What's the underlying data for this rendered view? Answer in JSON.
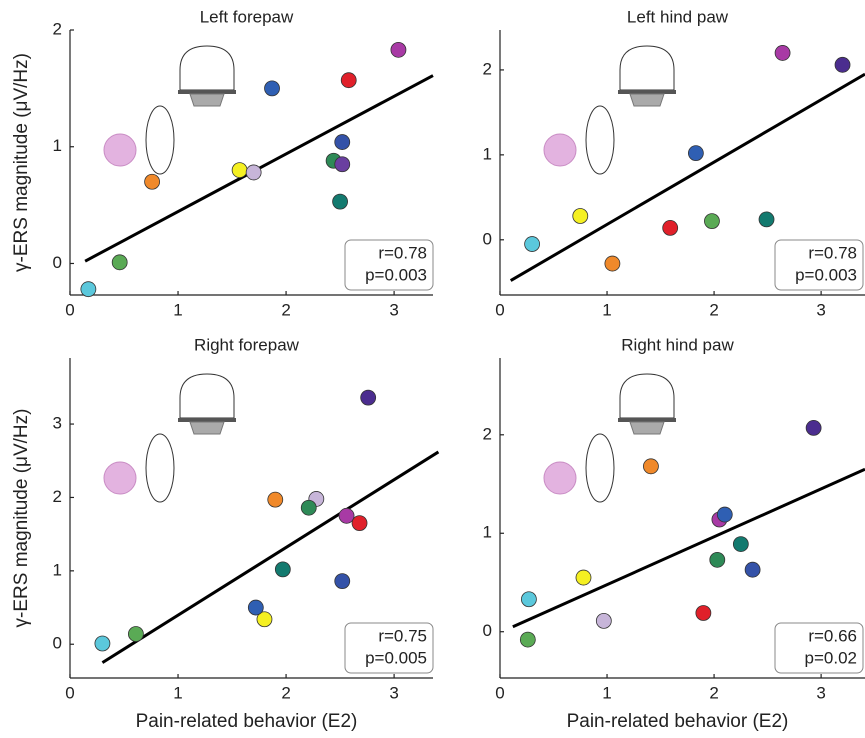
{
  "chart_data": [
    {
      "type": "scatter",
      "title": "Left forepaw",
      "ylabel": "γ-ERS magnitude (μV/Hz)",
      "xlim": [
        0,
        3.36
      ],
      "ylim": [
        -0.27,
        2
      ],
      "xticks": [
        0,
        1,
        2,
        3
      ],
      "yticks": [
        0,
        1,
        2
      ],
      "points": {
        "x": [
          0.17,
          0.46,
          0.76,
          1.57,
          1.7,
          1.87,
          2.44,
          2.52,
          2.52,
          2.5,
          2.58,
          3.04
        ],
        "y": [
          -0.22,
          0.01,
          0.7,
          0.8,
          0.78,
          1.5,
          0.88,
          1.04,
          0.85,
          0.53,
          1.57,
          1.83
        ],
        "colors": [
          "#5bc8dc",
          "#5aaa55",
          "#f0892a",
          "#f5f022",
          "#c7b5d9",
          "#2f5fb3",
          "#2e8a57",
          "#3452a8",
          "#6a3fa0",
          "#137a6f",
          "#e0202a",
          "#a83aa5"
        ]
      },
      "fit": {
        "x": [
          0.14,
          3.36
        ],
        "y": [
          0.02,
          1.61
        ]
      },
      "annotation": [
        "r=0.78",
        "p=0.003"
      ]
    },
    {
      "type": "scatter",
      "title": "Left hind paw",
      "xlim": [
        0,
        3.41
      ],
      "ylim": [
        -0.65,
        2.47
      ],
      "xticks": [
        0,
        1,
        2,
        3
      ],
      "yticks": [
        0,
        1,
        2
      ],
      "points": {
        "x": [
          0.3,
          0.75,
          1.05,
          1.59,
          1.83,
          1.98,
          2.49,
          2.64,
          3.2
        ],
        "y": [
          -0.05,
          0.28,
          -0.28,
          0.14,
          1.02,
          0.22,
          0.24,
          2.2,
          2.06
        ],
        "colors": [
          "#5bc8dc",
          "#f5f022",
          "#f0892a",
          "#e0202a",
          "#2f5fb3",
          "#5aaa55",
          "#137a6f",
          "#a83aa5",
          "#4b2d8f"
        ]
      },
      "fit": {
        "x": [
          0.1,
          3.41
        ],
        "y": [
          -0.48,
          1.95
        ]
      },
      "annotation": [
        "r=0.78",
        "p=0.003"
      ]
    },
    {
      "type": "scatter",
      "title": "Right forepaw",
      "xlabel": "Pain-related behavior (E2)",
      "ylabel": "γ-ERS magnitude (μV/Hz)",
      "xlim": [
        0,
        3.36
      ],
      "ylim": [
        -0.46,
        3.9
      ],
      "xticks": [
        0,
        1,
        2,
        3
      ],
      "yticks": [
        0,
        1,
        2,
        3
      ],
      "points": {
        "x": [
          0.3,
          0.61,
          1.8,
          1.72,
          1.97,
          1.9,
          2.28,
          2.21,
          2.56,
          2.68,
          2.52,
          2.76
        ],
        "y": [
          0.01,
          0.14,
          0.34,
          0.5,
          1.02,
          1.97,
          1.98,
          1.86,
          1.75,
          1.65,
          0.86,
          3.36
        ],
        "colors": [
          "#5bc8dc",
          "#5aaa55",
          "#f5f022",
          "#2f5fb3",
          "#137a6f",
          "#f0892a",
          "#c7b5d9",
          "#2e8a57",
          "#a83aa5",
          "#e0202a",
          "#3452a8",
          "#4b2d8f"
        ]
      },
      "fit": {
        "x": [
          0.3,
          3.41
        ],
        "y": [
          -0.25,
          2.62
        ]
      },
      "annotation": [
        "r=0.75",
        "p=0.005"
      ]
    },
    {
      "type": "scatter",
      "title": "Right hind paw",
      "xlabel": "Pain-related behavior (E2)",
      "xlim": [
        0,
        3.41
      ],
      "ylim": [
        -0.47,
        2.78
      ],
      "xticks": [
        0,
        1,
        2,
        3
      ],
      "yticks": [
        0,
        1,
        2
      ],
      "points": {
        "x": [
          0.27,
          0.26,
          0.78,
          0.97,
          1.41,
          1.9,
          2.03,
          2.05,
          2.1,
          2.25,
          2.36,
          2.93
        ],
        "y": [
          0.33,
          -0.08,
          0.55,
          0.11,
          1.68,
          0.19,
          0.73,
          1.14,
          1.19,
          0.89,
          0.63,
          2.07
        ],
        "colors": [
          "#5bc8dc",
          "#5aaa55",
          "#f5f022",
          "#c7b5d9",
          "#f0892a",
          "#e0202a",
          "#2e8a57",
          "#a83aa5",
          "#2f5fb3",
          "#137a6f",
          "#3452a8",
          "#4b2d8f"
        ]
      },
      "fit": {
        "x": [
          0.12,
          3.41
        ],
        "y": [
          0.05,
          1.65
        ]
      },
      "annotation": [
        "r=0.66",
        "p=0.02"
      ]
    }
  ]
}
